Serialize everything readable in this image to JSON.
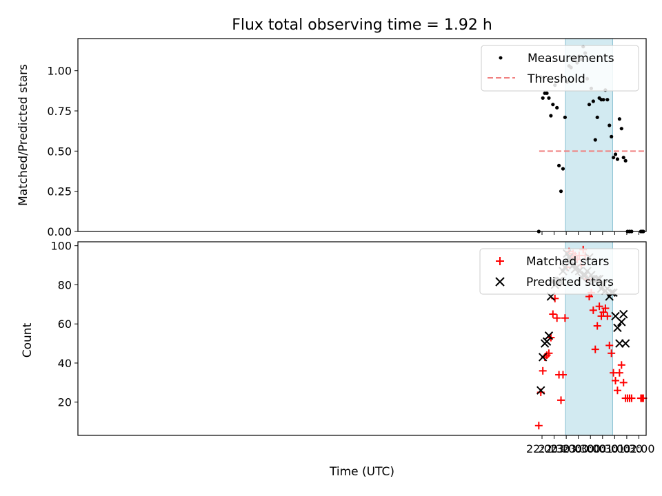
{
  "chart_data": [
    {
      "type": "scatter",
      "title": "Flux total observing time = 1.92 h",
      "xlabel": "",
      "ylabel": "Matched/Predicted stars",
      "ylim": [
        0,
        1.2
      ],
      "xlim_minutes_after_midnight": [
        -1270,
        138
      ],
      "shaded_interval": {
        "start": "22:58",
        "end": "00:55",
        "color": "#add8e6"
      },
      "yticks": [
        "0.00",
        "0.25",
        "0.50",
        "0.75",
        "1.00"
      ],
      "ytick_values": [
        0,
        0.25,
        0.5,
        0.75,
        1.0
      ],
      "grid": false,
      "legend": "top-right",
      "legend_entries": [
        "Measurements",
        "Threshold"
      ],
      "threshold": {
        "y": 0.5,
        "x_start": "21:53",
        "x_end": "02:13",
        "color": "#f08080"
      },
      "series": [
        {
          "name": "Measurements",
          "color": "#000000",
          "points": [
            [
              "21:52",
              0.0
            ],
            [
              "21:57",
              0.96
            ],
            [
              "22:02",
              0.83
            ],
            [
              "22:07",
              0.86
            ],
            [
              "22:12",
              0.86
            ],
            [
              "22:17",
              0.83
            ],
            [
              "22:22",
              0.72
            ],
            [
              "22:27",
              0.79
            ],
            [
              "22:32",
              0.91
            ],
            [
              "22:37",
              0.77
            ],
            [
              "22:42",
              0.41
            ],
            [
              "22:47",
              0.25
            ],
            [
              "22:52",
              0.39
            ],
            [
              "22:57",
              0.71
            ],
            [
              "23:02",
              0.93
            ],
            [
              "23:07",
              1.03
            ],
            [
              "23:12",
              1.02
            ],
            [
              "23:17",
              1.07
            ],
            [
              "23:22",
              1.08
            ],
            [
              "23:27",
              1.05
            ],
            [
              "23:32",
              1.09
            ],
            [
              "23:37",
              1.07
            ],
            [
              "23:42",
              1.15
            ],
            [
              "23:47",
              1.11
            ],
            [
              "23:52",
              0.95
            ],
            [
              "23:57",
              0.79
            ],
            [
              "00:02",
              0.89
            ],
            [
              "00:07",
              0.81
            ],
            [
              "00:12",
              0.57
            ],
            [
              "00:17",
              0.71
            ],
            [
              "00:22",
              0.83
            ],
            [
              "00:27",
              0.82
            ],
            [
              "00:32",
              0.82
            ],
            [
              "00:37",
              0.88
            ],
            [
              "00:42",
              0.82
            ],
            [
              "00:47",
              0.66
            ],
            [
              "00:52",
              0.59
            ],
            [
              "00:57",
              0.46
            ],
            [
              "01:02",
              0.48
            ],
            [
              "01:07",
              0.45
            ],
            [
              "01:12",
              0.7
            ],
            [
              "01:17",
              0.64
            ],
            [
              "01:22",
              0.46
            ],
            [
              "01:27",
              0.44
            ],
            [
              "01:32",
              0.0
            ],
            [
              "01:37",
              0.0
            ],
            [
              "01:42",
              0.0
            ],
            [
              "02:05",
              0.0
            ],
            [
              "02:08",
              0.0
            ],
            [
              "02:11",
              0.0
            ]
          ]
        }
      ]
    },
    {
      "type": "scatter",
      "title": "",
      "xlabel": "Time (UTC)",
      "ylabel": "Count",
      "ylim": [
        3,
        102
      ],
      "xlim_minutes_after_midnight": [
        -1270,
        138
      ],
      "shaded_interval": {
        "start": "22:58",
        "end": "00:55",
        "color": "#add8e6"
      },
      "yticks": [
        "20",
        "40",
        "60",
        "80",
        "100"
      ],
      "ytick_values": [
        20,
        40,
        60,
        80,
        100
      ],
      "xticks": [
        "22:00",
        "22:30",
        "23:00",
        "23:30",
        "00:00",
        "00:30",
        "01:00",
        "01:30",
        "02:00"
      ],
      "xtick_minutes": [
        -120,
        -90,
        -60,
        -30,
        0,
        30,
        60,
        90,
        120
      ],
      "grid": false,
      "legend": "top-right",
      "legend_entries": [
        "Matched stars",
        "Predicted stars"
      ],
      "series": [
        {
          "name": "Matched stars",
          "marker": "+",
          "color": "#ff0000",
          "points": [
            [
              "21:52",
              8
            ],
            [
              "21:57",
              25
            ],
            [
              "22:02",
              36
            ],
            [
              "22:07",
              43
            ],
            [
              "22:12",
              44
            ],
            [
              "22:17",
              45
            ],
            [
              "22:22",
              53
            ],
            [
              "22:27",
              65
            ],
            [
              "22:32",
              73
            ],
            [
              "22:37",
              63
            ],
            [
              "22:42",
              34
            ],
            [
              "22:47",
              21
            ],
            [
              "22:52",
              34
            ],
            [
              "22:57",
              63
            ],
            [
              "23:02",
              89
            ],
            [
              "23:07",
              97
            ],
            [
              "23:12",
              94
            ],
            [
              "23:17",
              96
            ],
            [
              "23:22",
              95
            ],
            [
              "23:27",
              93
            ],
            [
              "23:32",
              95
            ],
            [
              "23:37",
              90
            ],
            [
              "23:42",
              98
            ],
            [
              "23:47",
              95
            ],
            [
              "23:52",
              83
            ],
            [
              "23:57",
              74
            ],
            [
              "00:02",
              76
            ],
            [
              "00:07",
              67
            ],
            [
              "00:12",
              47
            ],
            [
              "00:17",
              59
            ],
            [
              "00:22",
              69
            ],
            [
              "00:27",
              64
            ],
            [
              "00:32",
              66
            ],
            [
              "00:37",
              68
            ],
            [
              "00:42",
              64
            ],
            [
              "00:47",
              49
            ],
            [
              "00:52",
              45
            ],
            [
              "00:57",
              35
            ],
            [
              "01:02",
              31
            ],
            [
              "01:07",
              26
            ],
            [
              "01:12",
              35
            ],
            [
              "01:17",
              39
            ],
            [
              "01:22",
              30
            ],
            [
              "01:27",
              22
            ],
            [
              "01:32",
              22
            ],
            [
              "01:37",
              22
            ],
            [
              "01:42",
              22
            ],
            [
              "02:05",
              22
            ],
            [
              "02:08",
              22
            ],
            [
              "02:11",
              22
            ]
          ]
        },
        {
          "name": "Predicted stars",
          "marker": "x",
          "color": "#000000",
          "points": [
            [
              "21:57",
              26
            ],
            [
              "22:02",
              43
            ],
            [
              "22:07",
              50
            ],
            [
              "22:12",
              51
            ],
            [
              "22:17",
              54
            ],
            [
              "22:22",
              74
            ],
            [
              "22:27",
              82
            ],
            [
              "22:32",
              80
            ],
            [
              "22:37",
              81
            ],
            [
              "22:42",
              82
            ],
            [
              "22:47",
              82
            ],
            [
              "22:52",
              87
            ],
            [
              "22:57",
              89
            ],
            [
              "23:02",
              96
            ],
            [
              "23:07",
              94
            ],
            [
              "23:12",
              92
            ],
            [
              "23:17",
              90
            ],
            [
              "23:22",
              88
            ],
            [
              "23:27",
              89
            ],
            [
              "23:32",
              87
            ],
            [
              "23:37",
              84
            ],
            [
              "23:42",
              85
            ],
            [
              "23:47",
              85
            ],
            [
              "23:52",
              87
            ],
            [
              "23:57",
              94
            ],
            [
              "00:02",
              85
            ],
            [
              "00:07",
              83
            ],
            [
              "00:12",
              82
            ],
            [
              "00:17",
              83
            ],
            [
              "00:22",
              83
            ],
            [
              "00:27",
              78
            ],
            [
              "00:32",
              80
            ],
            [
              "00:37",
              77
            ],
            [
              "00:42",
              78
            ],
            [
              "00:47",
              74
            ],
            [
              "00:52",
              76
            ],
            [
              "00:57",
              76
            ],
            [
              "01:02",
              64
            ],
            [
              "01:07",
              58
            ],
            [
              "01:12",
              50
            ],
            [
              "01:17",
              61
            ],
            [
              "01:22",
              65
            ],
            [
              "01:27",
              50
            ]
          ]
        }
      ]
    }
  ]
}
